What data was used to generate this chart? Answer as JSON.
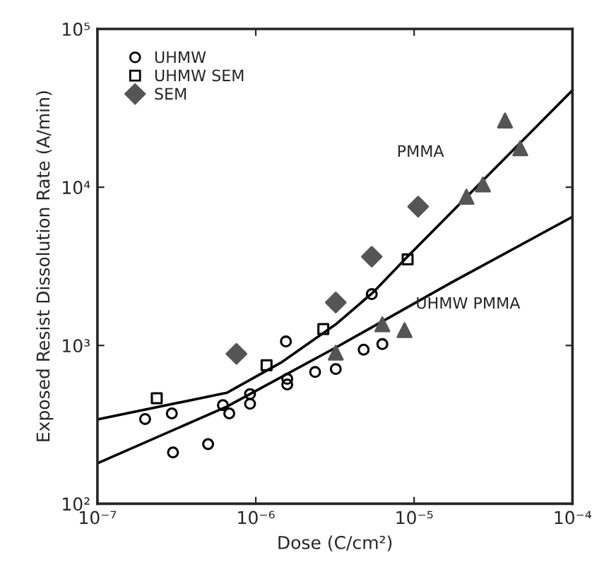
{
  "chart_data": {
    "type": "scatter",
    "xlabel": "Dose (C/cm²)",
    "ylabel": "Exposed Resist Dissolution Rate (A/min)",
    "log": "xy",
    "xlim": [
      1e-07,
      0.0001
    ],
    "ylim": [
      100,
      100000
    ],
    "xticks": [
      {
        "value": 1e-07,
        "label": "10⁻⁷"
      },
      {
        "value": 1e-06,
        "label": "10⁻⁶"
      },
      {
        "value": 1e-05,
        "label": "10⁻⁵"
      },
      {
        "value": 0.0001,
        "label": "10⁻⁴"
      }
    ],
    "yticks": [
      {
        "value": 100,
        "label": "10²"
      },
      {
        "value": 1000,
        "label": "10³"
      },
      {
        "value": 10000,
        "label": "10⁴"
      },
      {
        "value": 100000,
        "label": "10⁵"
      }
    ],
    "grid": false,
    "legend": "top left",
    "series": [
      {
        "name": "UHMW",
        "color": "#000000",
        "marker": "circle",
        "x": [
          2e-07,
          2.95e-07,
          3e-07,
          5e-07,
          6.2e-07,
          6.8e-07,
          9.2e-07,
          9.2e-07,
          1.58e-06,
          1.58e-06,
          1.55e-06,
          2.37e-06,
          3.2e-06,
          4.8e-06,
          6.3e-06,
          5.4e-06
        ],
        "values": [
          343,
          372,
          211,
          238,
          420,
          372,
          493,
          428,
          615,
          567,
          1060,
          680,
          710,
          940,
          1020,
          2110
        ]
      },
      {
        "name": "UHMW SEM",
        "color": "#000000",
        "marker": "square",
        "x": [
          2.37e-07,
          1.17e-06,
          2.67e-06,
          9.1e-06
        ],
        "values": [
          464,
          750,
          1270,
          3500
        ]
      },
      {
        "color": "#555555",
        "marker": "triangle",
        "x": [
          3.2e-06,
          6.3e-06,
          8.7e-06,
          2.14e-05,
          2.72e-05,
          4.68e-05,
          3.75e-05
        ],
        "values": [
          900,
          1360,
          1250,
          8700,
          10400,
          17600,
          26400
        ]
      },
      {
        "name": "SEM",
        "color": "#555555",
        "marker": "diamond",
        "x": [
          7.55e-07,
          3.2e-06,
          5.4e-06,
          1.06e-05
        ],
        "values": [
          885,
          1870,
          3640,
          7540
        ]
      },
      {
        "type": "line",
        "color": "#000000",
        "marker": "none",
        "x": [
          1e-07,
          6.56e-07,
          1.46e-06,
          3.26e-06,
          5.6e-06,
          8.9e-06,
          2.1e-05,
          0.0001
        ],
        "values": [
          341,
          502,
          785,
          1380,
          2200,
          3570,
          8500,
          41000
        ]
      },
      {
        "type": "line",
        "color": "#000000",
        "marker": "none",
        "x": [
          1e-07,
          6.56e-07,
          3.26e-06,
          1.72e-05,
          0.0001
        ],
        "values": [
          180,
          411,
          980,
          2500,
          6500
        ]
      }
    ],
    "annotations": [
      "PMMA",
      "UHMW PMMA"
    ]
  }
}
